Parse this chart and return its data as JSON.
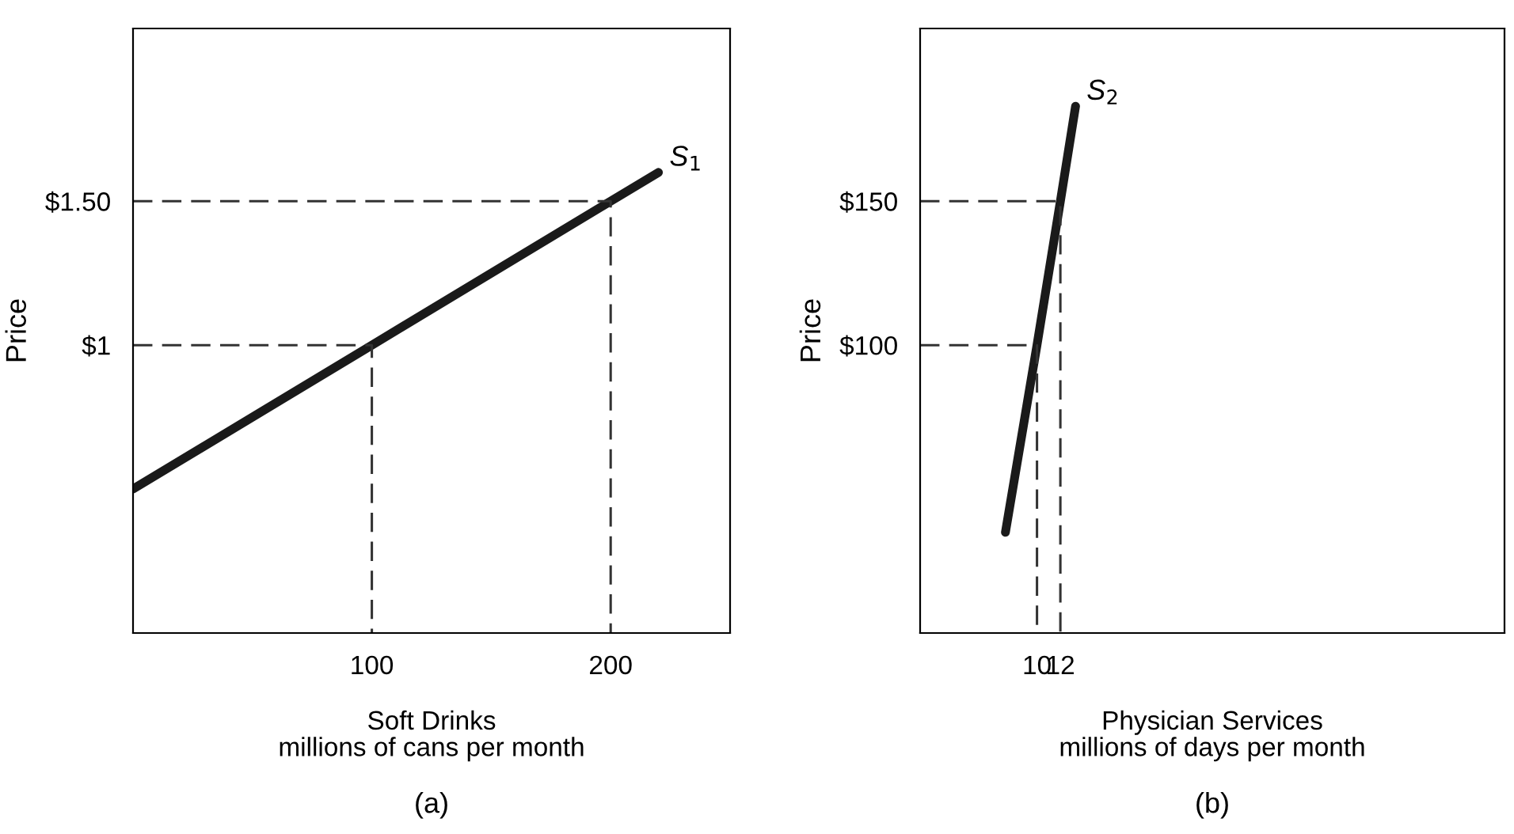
{
  "chart_data": [
    {
      "type": "line",
      "xlabel": "Soft Drinks\nmillions of cans per month",
      "ylabel": "Price",
      "annotations": [
        {
          "text": "S$_{1}$",
          "x": 220,
          "y": 1.6
        },
        "(a)"
      ],
      "series": [
        {
          "x": [
            0,
            100,
            200,
            220
          ],
          "values": [
            0.5,
            1,
            1.5,
            1.6
          ],
          "color": "#1a1a1a",
          "line_style": "solid"
        },
        {
          "x": [
            0,
            100,
            100
          ],
          "values": [
            1,
            1,
            0
          ],
          "color": "#333333",
          "line_style": "dashed"
        },
        {
          "x": [
            0,
            200,
            200
          ],
          "values": [
            1.5,
            1.5,
            0
          ],
          "color": "#333333",
          "line_style": "dashed"
        }
      ],
      "xlim": [
        0,
        250
      ],
      "ylim": [
        0,
        2.1
      ],
      "xticks": [
        100,
        200
      ],
      "yticks": [
        {
          "value": 1,
          "label": "$1"
        },
        {
          "value": 1.5,
          "label": "$1.50"
        }
      ],
      "grid": false,
      "legend": false
    },
    {
      "type": "line",
      "xlabel": "Physician Services\nmillions of days per month",
      "ylabel": "Price",
      "annotations": [
        {
          "text": "S$_{2}$",
          "x": 13.3,
          "y": 183
        },
        "(b)"
      ],
      "series": [
        {
          "x": [
            7.3,
            10,
            12,
            13.3
          ],
          "values": [
            35,
            100,
            150,
            183
          ],
          "color": "#1a1a1a",
          "line_style": "solid"
        },
        {
          "x": [
            0,
            10,
            10
          ],
          "values": [
            100,
            100,
            0
          ],
          "color": "#333333",
          "line_style": "dashed"
        },
        {
          "x": [
            0,
            12,
            12
          ],
          "values": [
            150,
            150,
            0
          ],
          "color": "#333333",
          "line_style": "dashed"
        }
      ],
      "xlim": [
        0,
        50
      ],
      "ylim": [
        0,
        210
      ],
      "xticks": [
        {
          "value": 10,
          "label": "10"
        },
        {
          "value": 12,
          "label": "12"
        }
      ],
      "yticks": [
        {
          "value": 100,
          "label": "$100"
        },
        {
          "value": 150,
          "label": "$150"
        }
      ],
      "grid": false,
      "legend": false
    }
  ]
}
